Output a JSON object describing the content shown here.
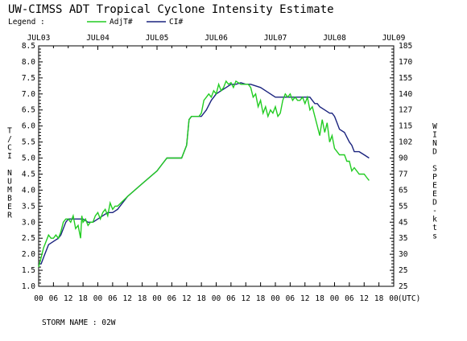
{
  "chart_data": {
    "type": "line",
    "title": "UW-CIMSS ADT Tropical Cyclone Intensity Estimate",
    "legend_label": "Legend :",
    "legend_placement": "top-left",
    "xlabel": "(UTC)",
    "ylabel_left": "T/CI NUMBER",
    "ylabel_right": "WIND SPEED-kts",
    "footer": "STORM NAME : 02W",
    "ylim": [
      1.0,
      8.5
    ],
    "yticks": [
      "1.0",
      "1.5",
      "2.0",
      "2.5",
      "3.0",
      "3.5",
      "4.0",
      "4.5",
      "5.0",
      "5.5",
      "6.0",
      "6.5",
      "7.0",
      "7.5",
      "8.0",
      "8.5"
    ],
    "wind_ticks": [
      "25",
      "25",
      "30",
      "35",
      "45",
      "55",
      "65",
      "77",
      "90",
      "102",
      "115",
      "127",
      "140",
      "155",
      "170",
      "185"
    ],
    "xlim_hours": [
      0,
      144
    ],
    "x_tick_labels": [
      "00",
      "06",
      "12",
      "18",
      "00",
      "06",
      "12",
      "18",
      "00",
      "06",
      "12",
      "18",
      "00",
      "06",
      "12",
      "18",
      "00",
      "06",
      "12",
      "18",
      "00",
      "06",
      "12",
      "18",
      "00"
    ],
    "date_labels": [
      "JUL03",
      "JUL04",
      "JUL05",
      "JUL06",
      "JUL07",
      "JUL08",
      "JUL09"
    ],
    "grid": false,
    "series": [
      {
        "name": "AdjT#",
        "color": "#22cc22",
        "points": [
          [
            0,
            1.6
          ],
          [
            1,
            1.9
          ],
          [
            2,
            2.2
          ],
          [
            3,
            2.4
          ],
          [
            4,
            2.6
          ],
          [
            5,
            2.5
          ],
          [
            6,
            2.5
          ],
          [
            7,
            2.6
          ],
          [
            8,
            2.5
          ],
          [
            9,
            2.7
          ],
          [
            10,
            3.0
          ],
          [
            11,
            3.1
          ],
          [
            12,
            3.1
          ],
          [
            13,
            3.0
          ],
          [
            14,
            3.2
          ],
          [
            15,
            2.8
          ],
          [
            16,
            2.9
          ],
          [
            17,
            2.5
          ],
          [
            17.5,
            3.2
          ],
          [
            18,
            3.0
          ],
          [
            19,
            3.1
          ],
          [
            20,
            2.9
          ],
          [
            21,
            3.0
          ],
          [
            22,
            3.0
          ],
          [
            23,
            3.2
          ],
          [
            24,
            3.3
          ],
          [
            25,
            3.1
          ],
          [
            26,
            3.3
          ],
          [
            27,
            3.4
          ],
          [
            28,
            3.2
          ],
          [
            29,
            3.6
          ],
          [
            30,
            3.4
          ],
          [
            31,
            3.5
          ],
          [
            32,
            3.5
          ],
          [
            36,
            3.8
          ],
          [
            42,
            4.2
          ],
          [
            48,
            4.6
          ],
          [
            50,
            4.8
          ],
          [
            52,
            5.0
          ],
          [
            58,
            5.0
          ],
          [
            60,
            5.4
          ],
          [
            61,
            6.2
          ],
          [
            62,
            6.3
          ],
          [
            65,
            6.3
          ],
          [
            66,
            6.4
          ],
          [
            67,
            6.8
          ],
          [
            68,
            6.9
          ],
          [
            69,
            7.0
          ],
          [
            70,
            6.9
          ],
          [
            71,
            7.1
          ],
          [
            72,
            7.0
          ],
          [
            73,
            7.3
          ],
          [
            74,
            7.1
          ],
          [
            75,
            7.2
          ],
          [
            76,
            7.4
          ],
          [
            77,
            7.3
          ],
          [
            78,
            7.35
          ],
          [
            79,
            7.2
          ],
          [
            80,
            7.4
          ],
          [
            82,
            7.3
          ],
          [
            84,
            7.3
          ],
          [
            85,
            7.3
          ],
          [
            86,
            7.2
          ],
          [
            87,
            6.9
          ],
          [
            88,
            7.0
          ],
          [
            89,
            6.6
          ],
          [
            90,
            6.8
          ],
          [
            91,
            6.4
          ],
          [
            92,
            6.6
          ],
          [
            93,
            6.3
          ],
          [
            94,
            6.5
          ],
          [
            95,
            6.4
          ],
          [
            96,
            6.6
          ],
          [
            97,
            6.3
          ],
          [
            98,
            6.4
          ],
          [
            99,
            6.8
          ],
          [
            100,
            7.0
          ],
          [
            101,
            6.9
          ],
          [
            102,
            7.0
          ],
          [
            103,
            6.8
          ],
          [
            104,
            6.9
          ],
          [
            105,
            6.8
          ],
          [
            106,
            6.8
          ],
          [
            107,
            6.9
          ],
          [
            108,
            6.7
          ],
          [
            109,
            6.9
          ],
          [
            110,
            6.5
          ],
          [
            111,
            6.6
          ],
          [
            112,
            6.3
          ],
          [
            113,
            6.0
          ],
          [
            114,
            5.7
          ],
          [
            115,
            6.2
          ],
          [
            116,
            5.8
          ],
          [
            117,
            6.1
          ],
          [
            118,
            5.5
          ],
          [
            119,
            5.7
          ],
          [
            120,
            5.3
          ],
          [
            121,
            5.2
          ],
          [
            122,
            5.1
          ],
          [
            124,
            5.1
          ],
          [
            125,
            4.9
          ],
          [
            126,
            4.9
          ],
          [
            127,
            4.6
          ],
          [
            128,
            4.7
          ],
          [
            130,
            4.5
          ],
          [
            132,
            4.5
          ],
          [
            133,
            4.4
          ],
          [
            134,
            4.3
          ]
        ]
      },
      {
        "name": "CI#",
        "color": "#1a237e",
        "points": [
          [
            0,
            1.7
          ],
          [
            1,
            1.7
          ],
          [
            2,
            1.9
          ],
          [
            3,
            2.1
          ],
          [
            4,
            2.3
          ],
          [
            6,
            2.4
          ],
          [
            8,
            2.5
          ],
          [
            9,
            2.6
          ],
          [
            10,
            2.8
          ],
          [
            11,
            3.0
          ],
          [
            12,
            3.1
          ],
          [
            18,
            3.1
          ],
          [
            20,
            3.0
          ],
          [
            22,
            3.0
          ],
          [
            24,
            3.1
          ],
          [
            26,
            3.2
          ],
          [
            28,
            3.3
          ],
          [
            30,
            3.3
          ],
          [
            32,
            3.4
          ],
          [
            36,
            3.8
          ],
          [
            42,
            4.2
          ],
          [
            48,
            4.6
          ],
          [
            50,
            4.8
          ],
          [
            52,
            5.0
          ],
          [
            58,
            5.0
          ],
          [
            60,
            5.4
          ],
          [
            61,
            6.2
          ],
          [
            62,
            6.3
          ],
          [
            66,
            6.3
          ],
          [
            68,
            6.5
          ],
          [
            70,
            6.8
          ],
          [
            72,
            7.0
          ],
          [
            74,
            7.1
          ],
          [
            76,
            7.2
          ],
          [
            78,
            7.3
          ],
          [
            80,
            7.3
          ],
          [
            82,
            7.35
          ],
          [
            84,
            7.3
          ],
          [
            86,
            7.3
          ],
          [
            88,
            7.25
          ],
          [
            90,
            7.2
          ],
          [
            92,
            7.1
          ],
          [
            94,
            7.0
          ],
          [
            96,
            6.9
          ],
          [
            98,
            6.9
          ],
          [
            100,
            6.9
          ],
          [
            106,
            6.9
          ],
          [
            108,
            6.9
          ],
          [
            110,
            6.9
          ],
          [
            111,
            6.8
          ],
          [
            112,
            6.7
          ],
          [
            113,
            6.7
          ],
          [
            114,
            6.6
          ],
          [
            116,
            6.5
          ],
          [
            118,
            6.4
          ],
          [
            119,
            6.4
          ],
          [
            120,
            6.3
          ],
          [
            121,
            6.1
          ],
          [
            122,
            5.9
          ],
          [
            124,
            5.8
          ],
          [
            126,
            5.5
          ],
          [
            127,
            5.4
          ],
          [
            128,
            5.2
          ],
          [
            130,
            5.2
          ],
          [
            132,
            5.1
          ],
          [
            134,
            5.0
          ]
        ]
      }
    ]
  }
}
